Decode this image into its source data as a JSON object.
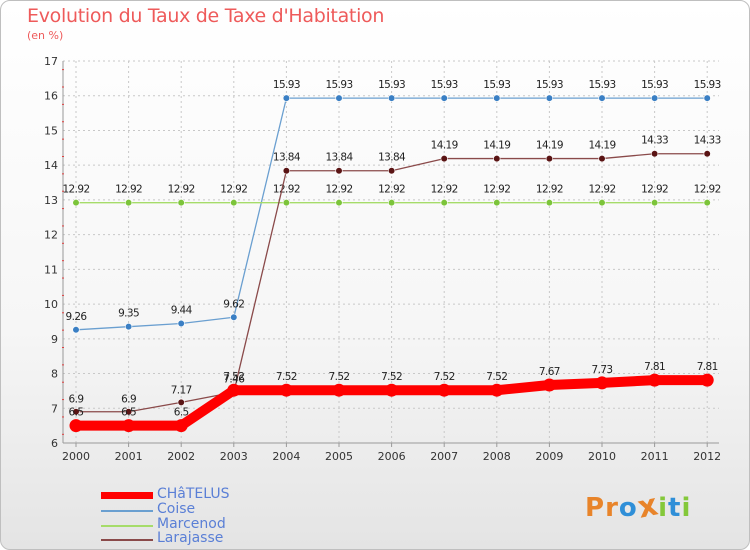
{
  "chart_data": {
    "type": "line",
    "title": "Evolution du Taux de Taxe d'Habitation",
    "ylabel": "(en %)",
    "xlabel": "",
    "categories": [
      "2000",
      "2001",
      "2002",
      "2003",
      "2004",
      "2005",
      "2006",
      "2007",
      "2008",
      "2009",
      "2010",
      "2011",
      "2012"
    ],
    "ylim": [
      6,
      17
    ],
    "yticks": [
      6,
      7,
      8,
      9,
      10,
      11,
      12,
      13,
      14,
      15,
      16,
      17
    ],
    "grid": true,
    "series": [
      {
        "name": "CHâTELUS",
        "color": "#ff0000",
        "emphasis": true,
        "values": [
          6.5,
          6.5,
          6.5,
          7.52,
          7.52,
          7.52,
          7.52,
          7.52,
          7.52,
          7.67,
          7.73,
          7.81,
          7.81
        ],
        "labels": [
          "6.5",
          "6.5",
          "6.5",
          "7.52",
          "7.52",
          "7.52",
          "7.52",
          "7.52",
          "7.52",
          "7.67",
          "7.73",
          "7.81",
          "7.81"
        ]
      },
      {
        "name": "Coise",
        "color": "#6a9fd0",
        "marker": "#3a7fc4",
        "values": [
          9.26,
          9.35,
          9.44,
          9.62,
          15.93,
          15.93,
          15.93,
          15.93,
          15.93,
          15.93,
          15.93,
          15.93,
          15.93
        ],
        "labels": [
          "9.26",
          "9.35",
          "9.44",
          "9.62",
          "15.93",
          "15.93",
          "15.93",
          "15.93",
          "15.93",
          "15.93",
          "15.93",
          "15.93",
          "15.93"
        ]
      },
      {
        "name": "Marcenod",
        "color": "#a6dc6a",
        "marker": "#7cc43a",
        "values": [
          12.92,
          12.92,
          12.92,
          12.92,
          12.92,
          12.92,
          12.92,
          12.92,
          12.92,
          12.92,
          12.92,
          12.92,
          12.92
        ],
        "labels": [
          "12.92",
          "12.92",
          "12.92",
          "12.92",
          "12.92",
          "12.92",
          "12.92",
          "12.92",
          "12.92",
          "12.92",
          "12.92",
          "12.92",
          "12.92"
        ]
      },
      {
        "name": "Larajasse",
        "color": "#8a4a4a",
        "marker": "#5a1414",
        "values": [
          6.9,
          6.9,
          7.17,
          7.46,
          13.84,
          13.84,
          13.84,
          14.19,
          14.19,
          14.19,
          14.19,
          14.33,
          14.33
        ],
        "labels": [
          "6.9",
          "6.9",
          "7.17",
          "7.46",
          "13.84",
          "13.84",
          "13.84",
          "14.19",
          "14.19",
          "14.19",
          "14.19",
          "14.33",
          "14.33"
        ]
      }
    ]
  },
  "logo": {
    "text": "Proxiti",
    "letters": [
      "P",
      "r",
      "o",
      "x",
      "i",
      "t",
      "i"
    ],
    "colors": [
      "#e8842a",
      "#e8842a",
      "#2f8fd8",
      "#e8842a",
      "#84c83a",
      "#2f8fd8",
      "#84c83a"
    ]
  }
}
